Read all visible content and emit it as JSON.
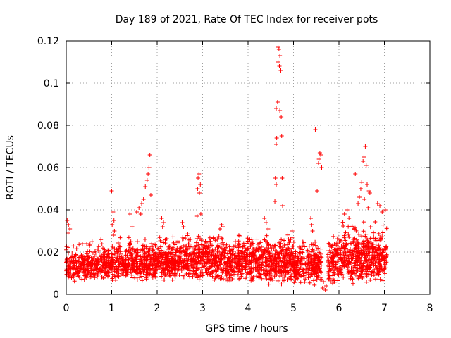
{
  "chart_data": {
    "type": "scatter",
    "title": "Day 189 of 2021, Rate Of TEC Index for receiver pots",
    "xlabel": "GPS time / hours",
    "ylabel": "ROTI / TECUs",
    "xlim": [
      0,
      8
    ],
    "ylim": [
      0,
      0.12
    ],
    "x_ticks": [
      "0",
      "1",
      "2",
      "3",
      "4",
      "5",
      "6",
      "7",
      "8"
    ],
    "y_ticks": [
      "0",
      "0.02",
      "0.04",
      "0.06",
      "0.08",
      "0.1",
      "0.12"
    ],
    "grid": true,
    "marker": "plus",
    "color": "#ff0000",
    "series": [
      {
        "name": "ROTI",
        "points": [
          [
            4.66,
            0.117
          ],
          [
            4.68,
            0.116
          ],
          [
            4.7,
            0.113
          ],
          [
            4.66,
            0.11
          ],
          [
            4.69,
            0.108
          ],
          [
            4.72,
            0.106
          ],
          [
            4.65,
            0.091
          ],
          [
            4.62,
            0.088
          ],
          [
            4.7,
            0.087
          ],
          [
            4.73,
            0.084
          ],
          [
            4.74,
            0.075
          ],
          [
            4.63,
            0.074
          ],
          [
            4.62,
            0.071
          ],
          [
            4.6,
            0.055
          ],
          [
            4.62,
            0.052
          ],
          [
            4.59,
            0.044
          ],
          [
            4.76,
            0.042
          ],
          [
            4.75,
            0.055
          ],
          [
            5.48,
            0.078
          ],
          [
            5.58,
            0.067
          ],
          [
            5.6,
            0.066
          ],
          [
            5.56,
            0.064
          ],
          [
            5.55,
            0.062
          ],
          [
            5.62,
            0.06
          ],
          [
            5.52,
            0.049
          ],
          [
            1.84,
            0.066
          ],
          [
            1.82,
            0.06
          ],
          [
            1.8,
            0.057
          ],
          [
            1.78,
            0.054
          ],
          [
            1.74,
            0.051
          ],
          [
            1.86,
            0.047
          ],
          [
            1.7,
            0.045
          ],
          [
            1.66,
            0.043
          ],
          [
            1.6,
            0.041
          ],
          [
            1.55,
            0.039
          ],
          [
            1.64,
            0.038
          ],
          [
            2.92,
            0.057
          ],
          [
            2.9,
            0.055
          ],
          [
            2.95,
            0.052
          ],
          [
            2.89,
            0.05
          ],
          [
            2.93,
            0.048
          ],
          [
            2.96,
            0.038
          ],
          [
            2.88,
            0.037
          ],
          [
            1.0,
            0.049
          ],
          [
            1.03,
            0.039
          ],
          [
            1.05,
            0.035
          ],
          [
            1.01,
            0.033
          ],
          [
            1.06,
            0.03
          ],
          [
            1.04,
            0.028
          ],
          [
            6.58,
            0.07
          ],
          [
            6.55,
            0.065
          ],
          [
            6.53,
            0.063
          ],
          [
            6.6,
            0.061
          ],
          [
            6.36,
            0.057
          ],
          [
            6.5,
            0.053
          ],
          [
            6.62,
            0.052
          ],
          [
            6.48,
            0.05
          ],
          [
            6.66,
            0.049
          ],
          [
            6.68,
            0.048
          ],
          [
            6.45,
            0.046
          ],
          [
            6.56,
            0.045
          ],
          [
            6.42,
            0.043
          ],
          [
            6.64,
            0.041
          ],
          [
            6.18,
            0.04
          ],
          [
            6.12,
            0.038
          ],
          [
            6.22,
            0.036
          ],
          [
            6.85,
            0.043
          ],
          [
            6.9,
            0.042
          ],
          [
            6.95,
            0.039
          ],
          [
            7.02,
            0.04
          ],
          [
            4.36,
            0.036
          ],
          [
            4.4,
            0.034
          ],
          [
            4.44,
            0.031
          ],
          [
            5.38,
            0.036
          ],
          [
            5.4,
            0.033
          ],
          [
            5.42,
            0.03
          ],
          [
            3.42,
            0.033
          ],
          [
            3.45,
            0.032
          ],
          [
            3.38,
            0.031
          ],
          [
            2.1,
            0.036
          ],
          [
            2.14,
            0.034
          ],
          [
            2.12,
            0.032
          ],
          [
            2.55,
            0.034
          ],
          [
            2.58,
            0.032
          ],
          [
            0.02,
            0.035
          ],
          [
            0.05,
            0.033
          ],
          [
            0.08,
            0.031
          ],
          [
            0.04,
            0.029
          ],
          [
            1.4,
            0.038
          ],
          [
            1.45,
            0.032
          ],
          [
            5.64,
            0.003
          ],
          [
            5.66,
            0.006
          ],
          [
            5.7,
            0.002
          ],
          [
            5.72,
            0.004
          ]
        ],
        "dense_segments": [
          {
            "x": [
              0.0,
              1.0
            ],
            "y": [
              0.005,
              0.026
            ],
            "count": 380
          },
          {
            "x": [
              1.0,
              2.0
            ],
            "y": [
              0.005,
              0.028
            ],
            "count": 420
          },
          {
            "x": [
              2.0,
              3.0
            ],
            "y": [
              0.005,
              0.03
            ],
            "count": 430
          },
          {
            "x": [
              3.0,
              4.0
            ],
            "y": [
              0.005,
              0.03
            ],
            "count": 420
          },
          {
            "x": [
              4.0,
              5.0
            ],
            "y": [
              0.004,
              0.032
            ],
            "count": 450
          },
          {
            "x": [
              5.0,
              5.62
            ],
            "y": [
              0.004,
              0.028
            ],
            "count": 260
          },
          {
            "x": [
              5.75,
              6.0
            ],
            "y": [
              0.004,
              0.03
            ],
            "count": 100
          },
          {
            "x": [
              6.0,
              7.05
            ],
            "y": [
              0.004,
              0.036
            ],
            "count": 480
          }
        ]
      }
    ]
  }
}
